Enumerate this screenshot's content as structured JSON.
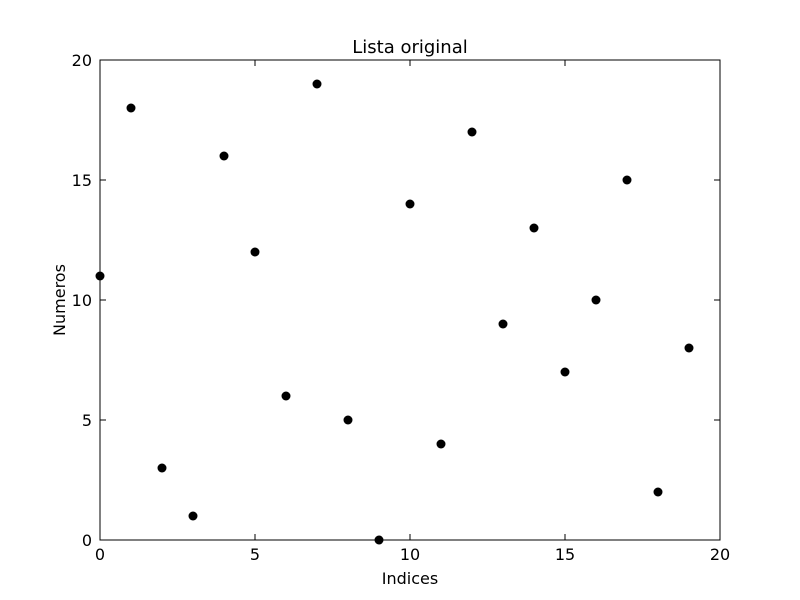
{
  "chart_data": {
    "type": "scatter",
    "title": "Lista original",
    "xlabel": "Indices",
    "ylabel": "Numeros",
    "xlim": [
      0,
      20
    ],
    "ylim": [
      0,
      20
    ],
    "xticks": [
      0,
      5,
      10,
      15,
      20
    ],
    "yticks": [
      0,
      5,
      10,
      15,
      20
    ],
    "grid": false,
    "marker_color": "#000000",
    "points": [
      {
        "x": 0,
        "y": 11
      },
      {
        "x": 1,
        "y": 18
      },
      {
        "x": 2,
        "y": 3
      },
      {
        "x": 3,
        "y": 1
      },
      {
        "x": 4,
        "y": 16
      },
      {
        "x": 5,
        "y": 12
      },
      {
        "x": 6,
        "y": 6
      },
      {
        "x": 7,
        "y": 19
      },
      {
        "x": 8,
        "y": 5
      },
      {
        "x": 9,
        "y": 0
      },
      {
        "x": 10,
        "y": 14
      },
      {
        "x": 11,
        "y": 4
      },
      {
        "x": 12,
        "y": 17
      },
      {
        "x": 13,
        "y": 9
      },
      {
        "x": 14,
        "y": 13
      },
      {
        "x": 15,
        "y": 7
      },
      {
        "x": 16,
        "y": 10
      },
      {
        "x": 17,
        "y": 15
      },
      {
        "x": 18,
        "y": 2
      },
      {
        "x": 19,
        "y": 8
      }
    ]
  }
}
